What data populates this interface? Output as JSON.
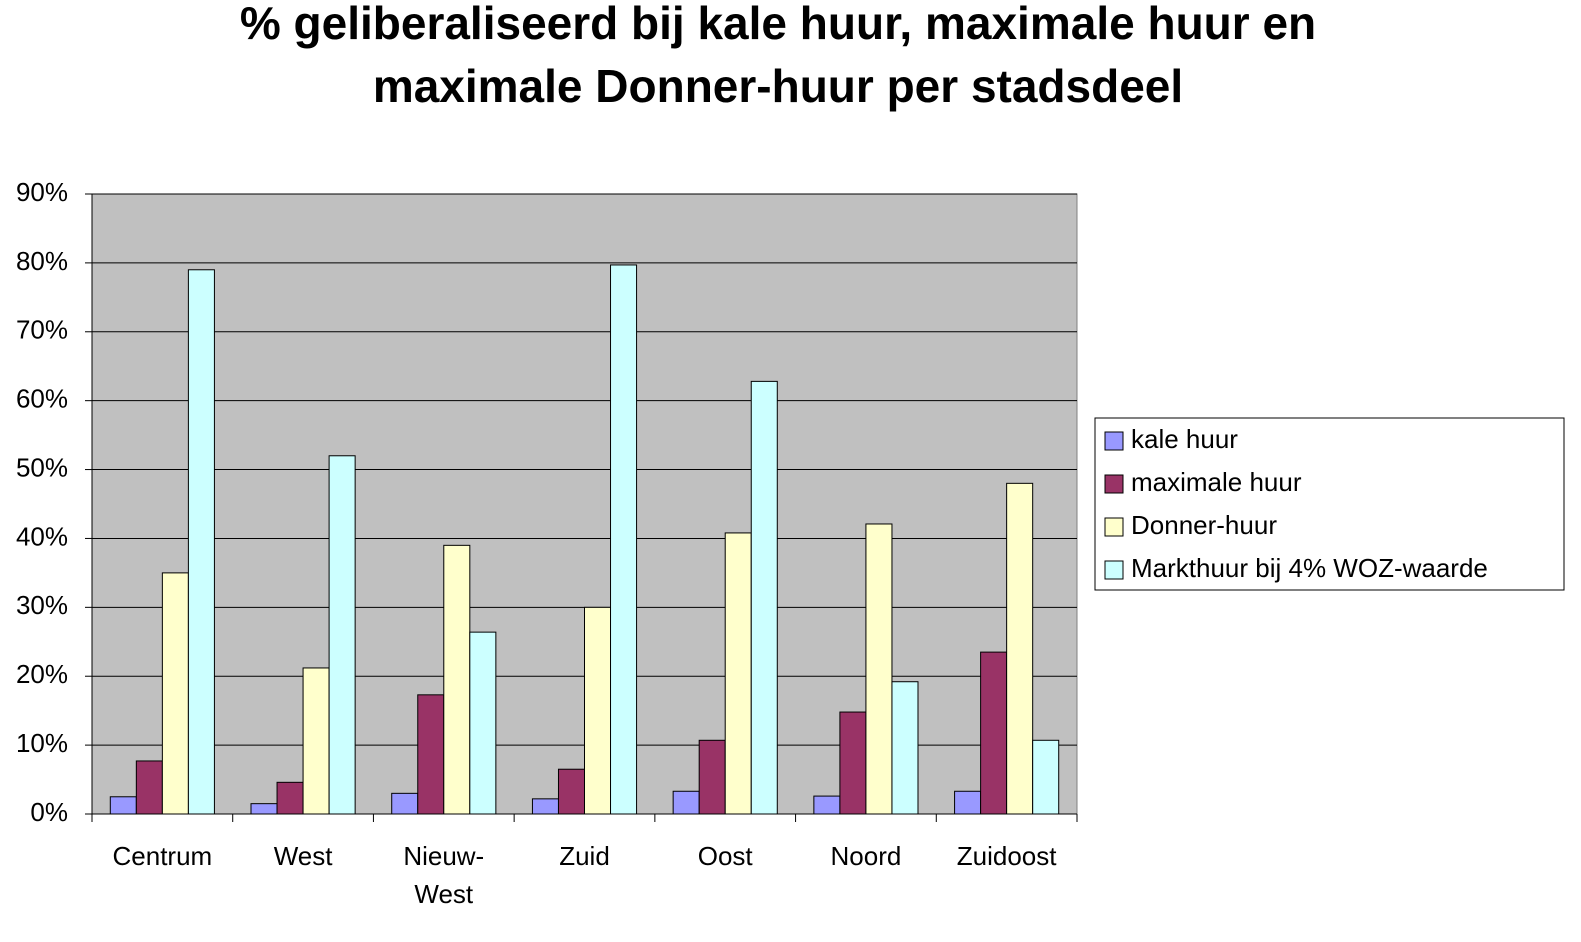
{
  "chart_data": {
    "type": "bar",
    "title": [
      "% geliberaliseerd bij kale huur, maximale huur en",
      "maximale Donner-huur per stadsdeel"
    ],
    "categories": [
      "Centrum",
      "West",
      "Nieuw-West",
      "Zuid",
      "Oost",
      "Noord",
      "Zuidoost"
    ],
    "series": [
      {
        "name": "kale huur",
        "color": "#9999ff",
        "values": [
          2.5,
          1.5,
          3,
          2.2,
          3.3,
          2.6,
          3.3
        ]
      },
      {
        "name": "maximale huur",
        "color": "#993366",
        "values": [
          7.7,
          4.6,
          17.3,
          6.5,
          10.7,
          14.8,
          23.5
        ]
      },
      {
        "name": "Donner-huur",
        "color": "#ffffcc",
        "values": [
          35,
          21.2,
          39,
          30,
          40.8,
          42.1,
          48
        ]
      },
      {
        "name": "Markthuur bij 4% WOZ-waarde",
        "color": "#ccffff",
        "values": [
          79,
          52,
          26.4,
          79.7,
          62.8,
          19.2,
          10.7
        ]
      }
    ],
    "ylim": [
      0,
      90
    ],
    "yticks": [
      {
        "value": 0,
        "label": "0%"
      },
      {
        "value": 10,
        "label": "10%"
      },
      {
        "value": 20,
        "label": "20%"
      },
      {
        "value": 30,
        "label": "30%"
      },
      {
        "value": 40,
        "label": "40%"
      },
      {
        "value": 50,
        "label": "50%"
      },
      {
        "value": 60,
        "label": "60%"
      },
      {
        "value": 70,
        "label": "70%"
      },
      {
        "value": 80,
        "label": "80%"
      },
      {
        "value": 90,
        "label": "90%"
      }
    ],
    "grid": true,
    "legend": "right",
    "plot_background": "#c0c0c0"
  }
}
